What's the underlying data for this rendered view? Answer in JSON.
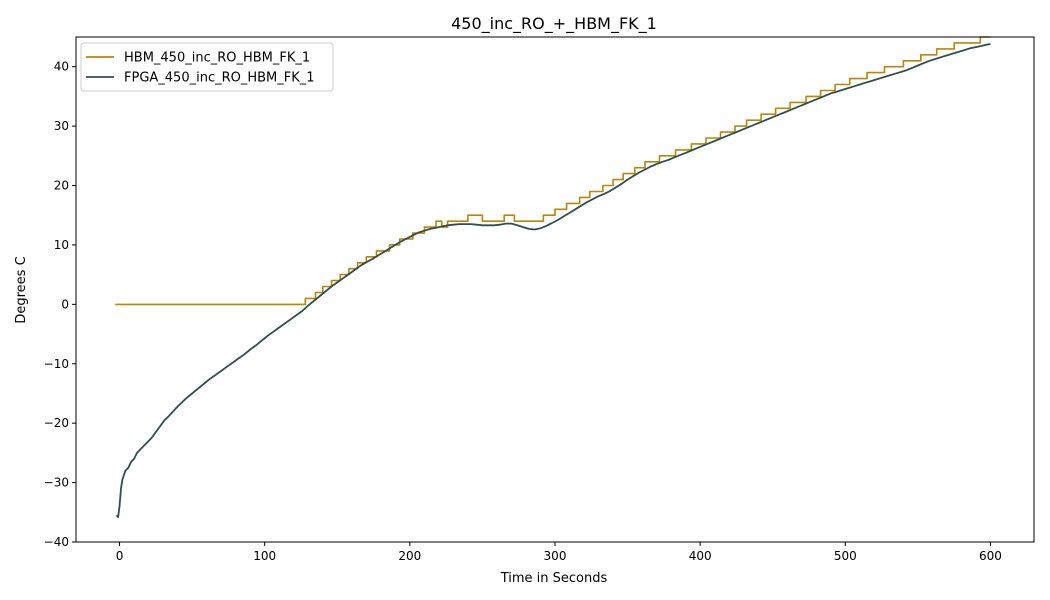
{
  "chart_data": {
    "type": "line",
    "title": "450_inc_RO_+_HBM_FK_1",
    "xlabel": "Time in Seconds",
    "ylabel": "Degrees C",
    "xlim": [
      -30,
      630
    ],
    "ylim": [
      -40,
      45
    ],
    "xticks": [
      0,
      100,
      200,
      300,
      400,
      500,
      600
    ],
    "xtick_labels": [
      "0",
      "100",
      "200",
      "300",
      "400",
      "500",
      "600"
    ],
    "yticks": [
      -40,
      -30,
      -20,
      -10,
      0,
      10,
      20,
      30,
      40
    ],
    "ytick_labels": [
      "−40",
      "−30",
      "−20",
      "−10",
      "0",
      "10",
      "20",
      "30",
      "40"
    ],
    "grid": false,
    "legend_position": "top-left",
    "series": [
      {
        "name": "HBM_450_inc_RO_HBM_FK_1",
        "color": "#b8860b",
        "style": "step",
        "points": [
          [
            -3,
            0
          ],
          [
            128,
            0
          ],
          [
            128,
            1
          ],
          [
            135,
            1
          ],
          [
            135,
            2
          ],
          [
            140,
            2
          ],
          [
            140,
            3
          ],
          [
            146,
            3
          ],
          [
            146,
            4
          ],
          [
            152,
            4
          ],
          [
            152,
            5
          ],
          [
            158,
            5
          ],
          [
            158,
            6
          ],
          [
            164,
            6
          ],
          [
            164,
            7
          ],
          [
            170,
            7
          ],
          [
            170,
            8
          ],
          [
            177,
            8
          ],
          [
            177,
            9
          ],
          [
            186,
            9
          ],
          [
            186,
            10
          ],
          [
            193,
            10
          ],
          [
            193,
            11
          ],
          [
            202,
            11
          ],
          [
            202,
            12
          ],
          [
            210,
            12
          ],
          [
            210,
            13
          ],
          [
            218,
            13
          ],
          [
            218,
            14
          ],
          [
            222,
            14
          ],
          [
            222,
            13
          ],
          [
            226,
            13
          ],
          [
            226,
            14
          ],
          [
            240,
            14
          ],
          [
            240,
            15
          ],
          [
            250,
            15
          ],
          [
            250,
            14
          ],
          [
            265,
            14
          ],
          [
            265,
            15
          ],
          [
            272,
            15
          ],
          [
            272,
            14
          ],
          [
            292,
            14
          ],
          [
            292,
            15
          ],
          [
            300,
            15
          ],
          [
            300,
            16
          ],
          [
            308,
            16
          ],
          [
            308,
            17
          ],
          [
            317,
            17
          ],
          [
            317,
            18
          ],
          [
            324,
            18
          ],
          [
            324,
            19
          ],
          [
            333,
            19
          ],
          [
            333,
            20
          ],
          [
            340,
            20
          ],
          [
            340,
            21
          ],
          [
            347,
            21
          ],
          [
            347,
            22
          ],
          [
            355,
            22
          ],
          [
            355,
            23
          ],
          [
            362,
            23
          ],
          [
            362,
            24
          ],
          [
            372,
            24
          ],
          [
            372,
            25
          ],
          [
            383,
            25
          ],
          [
            383,
            26
          ],
          [
            394,
            26
          ],
          [
            394,
            27
          ],
          [
            404,
            27
          ],
          [
            404,
            28
          ],
          [
            414,
            28
          ],
          [
            414,
            29
          ],
          [
            424,
            29
          ],
          [
            424,
            30
          ],
          [
            432,
            30
          ],
          [
            432,
            31
          ],
          [
            442,
            31
          ],
          [
            442,
            32
          ],
          [
            452,
            32
          ],
          [
            452,
            33
          ],
          [
            462,
            33
          ],
          [
            462,
            34
          ],
          [
            473,
            34
          ],
          [
            473,
            35
          ],
          [
            483,
            35
          ],
          [
            483,
            36
          ],
          [
            493,
            36
          ],
          [
            493,
            37
          ],
          [
            503,
            37
          ],
          [
            503,
            38
          ],
          [
            515,
            38
          ],
          [
            515,
            39
          ],
          [
            527,
            39
          ],
          [
            527,
            40
          ],
          [
            540,
            40
          ],
          [
            540,
            41
          ],
          [
            552,
            41
          ],
          [
            552,
            42
          ],
          [
            563,
            42
          ],
          [
            563,
            43
          ],
          [
            575,
            43
          ],
          [
            575,
            44
          ],
          [
            593,
            44
          ],
          [
            593,
            45
          ],
          [
            600,
            45
          ]
        ]
      },
      {
        "name": "FPGA_450_inc_RO_HBM_FK_1",
        "color": "#2f4f4f",
        "style": "line",
        "points": [
          [
            -2,
            -35.5
          ],
          [
            -1,
            -35.8
          ],
          [
            0,
            -34
          ],
          [
            1,
            -31
          ],
          [
            2,
            -29.5
          ],
          [
            4,
            -28
          ],
          [
            6,
            -27.5
          ],
          [
            8,
            -26.5
          ],
          [
            10,
            -26
          ],
          [
            12,
            -25
          ],
          [
            14,
            -24.5
          ],
          [
            16,
            -24
          ],
          [
            18,
            -23.5
          ],
          [
            20,
            -23
          ],
          [
            22,
            -22.5
          ],
          [
            25,
            -21.5
          ],
          [
            28,
            -20.5
          ],
          [
            31,
            -19.5
          ],
          [
            34,
            -18.8
          ],
          [
            37,
            -18
          ],
          [
            40,
            -17.2
          ],
          [
            43,
            -16.5
          ],
          [
            46,
            -15.8
          ],
          [
            50,
            -15
          ],
          [
            54,
            -14.2
          ],
          [
            58,
            -13.4
          ],
          [
            62,
            -12.6
          ],
          [
            66,
            -11.9
          ],
          [
            70,
            -11.2
          ],
          [
            74,
            -10.5
          ],
          [
            78,
            -9.8
          ],
          [
            82,
            -9.1
          ],
          [
            86,
            -8.4
          ],
          [
            90,
            -7.6
          ],
          [
            94,
            -6.9
          ],
          [
            98,
            -6.1
          ],
          [
            102,
            -5.3
          ],
          [
            106,
            -4.6
          ],
          [
            110,
            -3.9
          ],
          [
            114,
            -3.2
          ],
          [
            118,
            -2.5
          ],
          [
            122,
            -1.8
          ],
          [
            126,
            -1.1
          ],
          [
            130,
            -0.2
          ],
          [
            134,
            0.6
          ],
          [
            138,
            1.4
          ],
          [
            142,
            2.2
          ],
          [
            146,
            3
          ],
          [
            150,
            3.7
          ],
          [
            154,
            4.4
          ],
          [
            158,
            5.1
          ],
          [
            162,
            5.8
          ],
          [
            166,
            6.5
          ],
          [
            170,
            7.1
          ],
          [
            174,
            7.6
          ],
          [
            178,
            8.2
          ],
          [
            182,
            8.8
          ],
          [
            186,
            9.4
          ],
          [
            190,
            10
          ],
          [
            194,
            10.6
          ],
          [
            198,
            11.1
          ],
          [
            202,
            11.6
          ],
          [
            206,
            12.1
          ],
          [
            210,
            12.4
          ],
          [
            214,
            12.7
          ],
          [
            218,
            12.9
          ],
          [
            222,
            13.1
          ],
          [
            226,
            13.3
          ],
          [
            230,
            13.4
          ],
          [
            234,
            13.5
          ],
          [
            238,
            13.5
          ],
          [
            242,
            13.5
          ],
          [
            246,
            13.4
          ],
          [
            250,
            13.3
          ],
          [
            254,
            13.3
          ],
          [
            258,
            13.3
          ],
          [
            262,
            13.4
          ],
          [
            266,
            13.6
          ],
          [
            270,
            13.6
          ],
          [
            274,
            13.3
          ],
          [
            278,
            13
          ],
          [
            282,
            12.7
          ],
          [
            286,
            12.6
          ],
          [
            290,
            12.8
          ],
          [
            294,
            13.2
          ],
          [
            298,
            13.7
          ],
          [
            302,
            14.2
          ],
          [
            306,
            14.8
          ],
          [
            310,
            15.4
          ],
          [
            314,
            16
          ],
          [
            318,
            16.6
          ],
          [
            322,
            17.2
          ],
          [
            326,
            17.7
          ],
          [
            330,
            18.2
          ],
          [
            334,
            18.6
          ],
          [
            338,
            19.1
          ],
          [
            342,
            19.7
          ],
          [
            346,
            20.3
          ],
          [
            350,
            21
          ],
          [
            354,
            21.6
          ],
          [
            358,
            22.2
          ],
          [
            362,
            22.7
          ],
          [
            366,
            23.2
          ],
          [
            370,
            23.6
          ],
          [
            374,
            24
          ],
          [
            378,
            24.3
          ],
          [
            382,
            24.7
          ],
          [
            386,
            25.1
          ],
          [
            390,
            25.5
          ],
          [
            394,
            25.9
          ],
          [
            398,
            26.3
          ],
          [
            402,
            26.7
          ],
          [
            406,
            27.1
          ],
          [
            410,
            27.5
          ],
          [
            414,
            27.9
          ],
          [
            418,
            28.3
          ],
          [
            422,
            28.7
          ],
          [
            426,
            29.1
          ],
          [
            430,
            29.5
          ],
          [
            434,
            29.9
          ],
          [
            438,
            30.3
          ],
          [
            442,
            30.7
          ],
          [
            446,
            31.1
          ],
          [
            450,
            31.5
          ],
          [
            454,
            31.9
          ],
          [
            458,
            32.3
          ],
          [
            462,
            32.7
          ],
          [
            466,
            33.1
          ],
          [
            470,
            33.5
          ],
          [
            474,
            33.9
          ],
          [
            478,
            34.3
          ],
          [
            482,
            34.7
          ],
          [
            486,
            35.1
          ],
          [
            490,
            35.5
          ],
          [
            494,
            35.8
          ],
          [
            498,
            36.1
          ],
          [
            502,
            36.4
          ],
          [
            506,
            36.7
          ],
          [
            510,
            37
          ],
          [
            514,
            37.3
          ],
          [
            518,
            37.6
          ],
          [
            522,
            37.9
          ],
          [
            526,
            38.2
          ],
          [
            530,
            38.5
          ],
          [
            534,
            38.8
          ],
          [
            538,
            39.1
          ],
          [
            542,
            39.4
          ],
          [
            546,
            39.8
          ],
          [
            550,
            40.2
          ],
          [
            554,
            40.6
          ],
          [
            558,
            41
          ],
          [
            562,
            41.3
          ],
          [
            566,
            41.6
          ],
          [
            570,
            41.9
          ],
          [
            574,
            42.2
          ],
          [
            578,
            42.5
          ],
          [
            582,
            42.8
          ],
          [
            586,
            43.1
          ],
          [
            590,
            43.3
          ],
          [
            594,
            43.5
          ],
          [
            597,
            43.7
          ],
          [
            600,
            43.8
          ]
        ]
      }
    ]
  }
}
